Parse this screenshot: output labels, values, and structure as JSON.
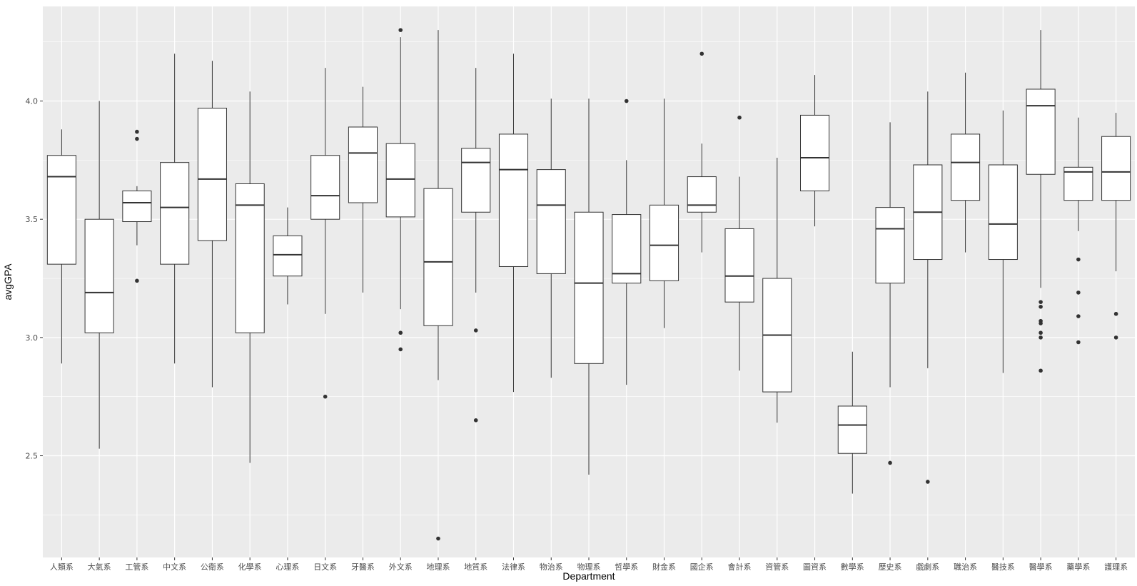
{
  "chart_data": {
    "type": "boxplot",
    "xlabel": "Department",
    "ylabel": "avgGPA",
    "ylim": [
      2.07,
      4.4
    ],
    "y_ticks": [
      "2.5",
      "3.0",
      "3.5",
      "4.0"
    ],
    "grid": true,
    "colors": {
      "panel": "#ebebeb",
      "grid_major": "#ffffff",
      "box_fill": "#ffffff",
      "stroke": "#333333",
      "text": "#4d4d4d"
    },
    "categories": [
      "人類系",
      "大氣系",
      "工管系",
      "中文系",
      "公衛系",
      "化學系",
      "心理系",
      "日文系",
      "牙醫系",
      "外文系",
      "地理系",
      "地質系",
      "法律系",
      "物治系",
      "物理系",
      "哲學系",
      "財金系",
      "國企系",
      "會計系",
      "資管系",
      "圖資系",
      "數學系",
      "歷史系",
      "戲劇系",
      "職治系",
      "醫技系",
      "醫學系",
      "藥學系",
      "護理系"
    ],
    "boxes": [
      {
        "wlo": 2.89,
        "q1": 3.31,
        "med": 3.68,
        "q3": 3.77,
        "whi": 3.88,
        "outliers": []
      },
      {
        "wlo": 2.53,
        "q1": 3.02,
        "med": 3.19,
        "q3": 3.5,
        "whi": 4.0,
        "outliers": []
      },
      {
        "wlo": 3.39,
        "q1": 3.49,
        "med": 3.57,
        "q3": 3.62,
        "whi": 3.64,
        "outliers": [
          3.87,
          3.84,
          3.24
        ]
      },
      {
        "wlo": 2.89,
        "q1": 3.31,
        "med": 3.55,
        "q3": 3.74,
        "whi": 4.2,
        "outliers": []
      },
      {
        "wlo": 2.79,
        "q1": 3.41,
        "med": 3.67,
        "q3": 3.97,
        "whi": 4.17,
        "outliers": []
      },
      {
        "wlo": 2.47,
        "q1": 3.02,
        "med": 3.56,
        "q3": 3.65,
        "whi": 4.04,
        "outliers": []
      },
      {
        "wlo": 3.14,
        "q1": 3.26,
        "med": 3.35,
        "q3": 3.43,
        "whi": 3.55,
        "outliers": []
      },
      {
        "wlo": 3.1,
        "q1": 3.5,
        "med": 3.6,
        "q3": 3.77,
        "whi": 4.14,
        "outliers": [
          2.75
        ]
      },
      {
        "wlo": 3.19,
        "q1": 3.57,
        "med": 3.78,
        "q3": 3.89,
        "whi": 4.06,
        "outliers": []
      },
      {
        "wlo": 3.12,
        "q1": 3.51,
        "med": 3.67,
        "q3": 3.82,
        "whi": 4.27,
        "outliers": [
          4.3,
          3.02,
          2.95
        ]
      },
      {
        "wlo": 2.82,
        "q1": 3.05,
        "med": 3.32,
        "q3": 3.63,
        "whi": 4.3,
        "outliers": [
          2.15
        ]
      },
      {
        "wlo": 3.19,
        "q1": 3.53,
        "med": 3.74,
        "q3": 3.8,
        "whi": 4.14,
        "outliers": [
          3.03,
          2.65
        ]
      },
      {
        "wlo": 2.77,
        "q1": 3.3,
        "med": 3.71,
        "q3": 3.86,
        "whi": 4.2,
        "outliers": []
      },
      {
        "wlo": 2.83,
        "q1": 3.27,
        "med": 3.56,
        "q3": 3.71,
        "whi": 4.01,
        "outliers": []
      },
      {
        "wlo": 2.42,
        "q1": 2.89,
        "med": 3.23,
        "q3": 3.53,
        "whi": 4.01,
        "outliers": []
      },
      {
        "wlo": 2.8,
        "q1": 3.23,
        "med": 3.27,
        "q3": 3.52,
        "whi": 3.75,
        "outliers": [
          4.0
        ]
      },
      {
        "wlo": 3.04,
        "q1": 3.24,
        "med": 3.39,
        "q3": 3.56,
        "whi": 4.01,
        "outliers": []
      },
      {
        "wlo": 3.36,
        "q1": 3.53,
        "med": 3.56,
        "q3": 3.68,
        "whi": 3.82,
        "outliers": [
          4.2
        ]
      },
      {
        "wlo": 2.86,
        "q1": 3.15,
        "med": 3.26,
        "q3": 3.46,
        "whi": 3.68,
        "outliers": [
          3.93
        ]
      },
      {
        "wlo": 2.64,
        "q1": 2.77,
        "med": 3.01,
        "q3": 3.25,
        "whi": 3.76,
        "outliers": []
      },
      {
        "wlo": 3.47,
        "q1": 3.62,
        "med": 3.76,
        "q3": 3.94,
        "whi": 4.11,
        "outliers": []
      },
      {
        "wlo": 2.34,
        "q1": 2.51,
        "med": 2.63,
        "q3": 2.71,
        "whi": 2.94,
        "outliers": []
      },
      {
        "wlo": 2.79,
        "q1": 3.23,
        "med": 3.46,
        "q3": 3.55,
        "whi": 3.91,
        "outliers": [
          2.47
        ]
      },
      {
        "wlo": 2.87,
        "q1": 3.33,
        "med": 3.53,
        "q3": 3.73,
        "whi": 4.04,
        "outliers": [
          2.39
        ]
      },
      {
        "wlo": 3.36,
        "q1": 3.58,
        "med": 3.74,
        "q3": 3.86,
        "whi": 4.12,
        "outliers": []
      },
      {
        "wlo": 2.85,
        "q1": 3.33,
        "med": 3.48,
        "q3": 3.73,
        "whi": 3.96,
        "outliers": []
      },
      {
        "wlo": 3.21,
        "q1": 3.69,
        "med": 3.98,
        "q3": 4.05,
        "whi": 4.3,
        "outliers": [
          3.15,
          3.13,
          3.07,
          3.06,
          3.02,
          3.0,
          2.86
        ]
      },
      {
        "wlo": 3.45,
        "q1": 3.58,
        "med": 3.7,
        "q3": 3.72,
        "whi": 3.93,
        "outliers": [
          3.33,
          3.19,
          3.09,
          2.98
        ]
      },
      {
        "wlo": 3.28,
        "q1": 3.58,
        "med": 3.7,
        "q3": 3.85,
        "whi": 3.95,
        "outliers": [
          3.1,
          3.0
        ]
      }
    ]
  }
}
